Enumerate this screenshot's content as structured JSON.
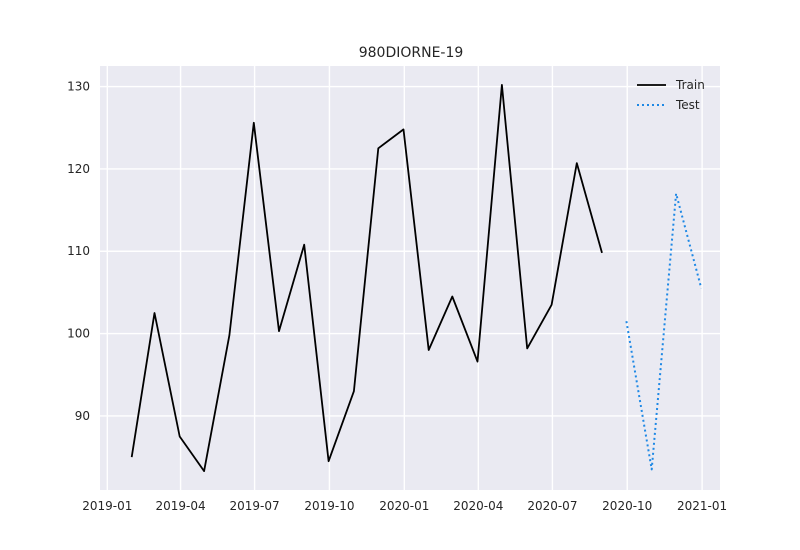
{
  "chart_data": {
    "type": "line",
    "title": "980DIORNE-19",
    "xlabel": "",
    "ylabel": "",
    "grid": true,
    "legend_position": "top-right",
    "xlim": [
      "2018-12-23",
      "2021-01-23"
    ],
    "ylim": [
      81,
      132.5
    ],
    "x_ticks": [
      "2019-01-01",
      "2019-04-01",
      "2019-07-01",
      "2019-10-01",
      "2020-01-01",
      "2020-04-01",
      "2020-07-01",
      "2020-10-01",
      "2021-01-01"
    ],
    "x_tick_labels": [
      "2019-01",
      "2019-04",
      "2019-07",
      "2019-10",
      "2020-01",
      "2020-04",
      "2020-07",
      "2020-10",
      "2021-01"
    ],
    "y_ticks": [
      90,
      100,
      110,
      120,
      130
    ],
    "y_tick_labels": [
      "90",
      "100",
      "110",
      "120",
      "130"
    ],
    "series": [
      {
        "name": "Train",
        "style": "solid",
        "color": "#000000",
        "x": [
          "2019-01-31",
          "2019-02-28",
          "2019-03-31",
          "2019-04-30",
          "2019-05-31",
          "2019-06-30",
          "2019-07-31",
          "2019-08-31",
          "2019-09-30",
          "2019-10-31",
          "2019-11-30",
          "2019-12-31",
          "2020-01-31",
          "2020-02-29",
          "2020-03-31",
          "2020-04-30",
          "2020-05-31",
          "2020-06-30",
          "2020-07-31",
          "2020-08-31"
        ],
        "values": [
          85.0,
          102.5,
          87.5,
          83.3,
          99.8,
          125.6,
          100.3,
          110.8,
          84.5,
          93.0,
          122.5,
          124.8,
          98.0,
          104.5,
          96.6,
          130.2,
          98.2,
          103.5,
          120.7,
          109.8
        ]
      },
      {
        "name": "Test",
        "style": "dotted",
        "color": "#1e88e5",
        "x": [
          "2020-09-30",
          "2020-10-31",
          "2020-11-30",
          "2020-12-31"
        ],
        "values": [
          101.5,
          83.5,
          117.0,
          105.5
        ]
      }
    ]
  }
}
